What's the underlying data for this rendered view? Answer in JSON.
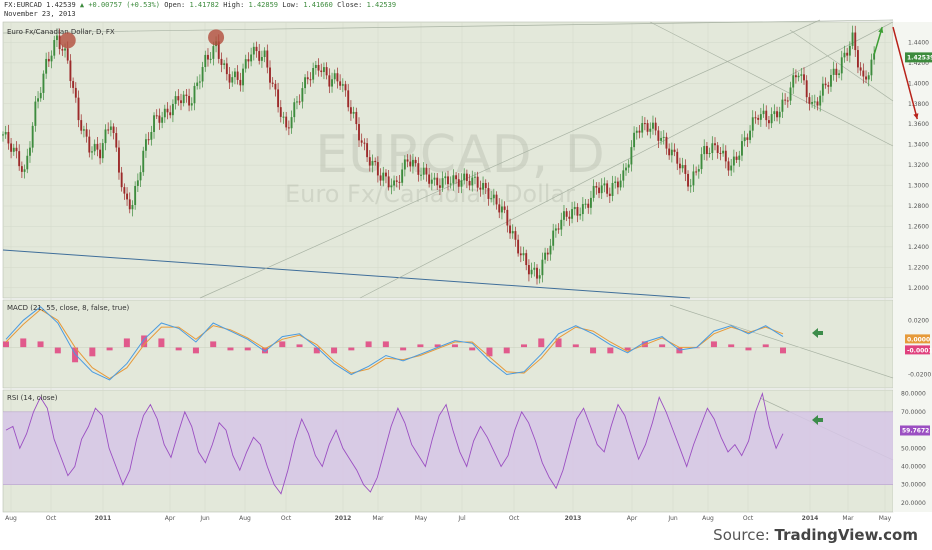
{
  "header": {
    "symbol": "FX:EURCAD",
    "price": "1.42539",
    "change": "▲ +0.00757 (+0.53%)",
    "open_label": "Open:",
    "open_value": "1.41782",
    "high_label": "High:",
    "high_value": "1.42859",
    "low_label": "Low:",
    "low_value": "1.41660",
    "close_label": "Close:",
    "close_value": "1.42539",
    "date": "November 23, 2013"
  },
  "colors": {
    "panel_bg": "#e3e8da",
    "candle_up": "#3d8b3d",
    "candle_down": "#9c2a2a",
    "macd_line": "#4a9be0",
    "signal_line": "#e69a3a",
    "histogram": "#e0417e",
    "rsi_line": "#9b4fc2",
    "rsi_band": "#d6c6e6",
    "arrow_up": "#3c9e33",
    "arrow_down": "#b8221a",
    "side_arrow": "#3c8c4a",
    "circle_marker": "#b24c3c"
  },
  "watermark": {
    "line1": "EURCAD, D",
    "line2": "Euro Fx/Canadian Dollar"
  },
  "source": {
    "prefix": "Source: ",
    "brand": "TradingView.com"
  },
  "chart_data": [
    {
      "type": "candlestick",
      "title": "Euro Fx/Canadian Dollar, D, FX",
      "ylim": [
        1.19,
        1.46
      ],
      "y_ticks": [
        "1.4400",
        "1.4200",
        "1.4000",
        "1.3800",
        "1.3600",
        "1.3400",
        "1.3200",
        "1.3000",
        "1.2800",
        "1.2600",
        "1.2400",
        "1.2200",
        "1.2000"
      ],
      "x_ticks": [
        "Aug",
        "Oct",
        "2011",
        "Apr",
        "Jun",
        "Aug",
        "Oct",
        "2012",
        "Mar",
        "May",
        "Jul",
        "Oct",
        "2013",
        "Apr",
        "Jun",
        "Aug",
        "Oct",
        "2014",
        "Mar",
        "May"
      ],
      "last_value": "1.42539",
      "close_path_approx": [
        [
          0,
          1.35
        ],
        [
          4,
          1.33
        ],
        [
          8,
          1.31
        ],
        [
          12,
          1.38
        ],
        [
          16,
          1.42
        ],
        [
          20,
          1.44
        ],
        [
          24,
          1.42
        ],
        [
          28,
          1.37
        ],
        [
          32,
          1.34
        ],
        [
          36,
          1.33
        ],
        [
          40,
          1.36
        ],
        [
          45,
          1.29
        ],
        [
          48,
          1.285
        ],
        [
          52,
          1.33
        ],
        [
          56,
          1.36
        ],
        [
          60,
          1.37
        ],
        [
          65,
          1.39
        ],
        [
          70,
          1.38
        ],
        [
          75,
          1.42
        ],
        [
          79,
          1.44
        ],
        [
          83,
          1.41
        ],
        [
          88,
          1.4
        ],
        [
          92,
          1.43
        ],
        [
          97,
          1.43
        ],
        [
          101,
          1.39
        ],
        [
          105,
          1.35
        ],
        [
          109,
          1.38
        ],
        [
          113,
          1.41
        ],
        [
          117,
          1.42
        ],
        [
          121,
          1.4
        ],
        [
          125,
          1.4
        ],
        [
          130,
          1.37
        ],
        [
          135,
          1.33
        ],
        [
          140,
          1.305
        ],
        [
          145,
          1.3
        ],
        [
          150,
          1.33
        ],
        [
          155,
          1.31
        ],
        [
          160,
          1.3
        ],
        [
          165,
          1.31
        ],
        [
          170,
          1.305
        ],
        [
          175,
          1.3
        ],
        [
          180,
          1.295
        ],
        [
          185,
          1.28
        ],
        [
          190,
          1.24
        ],
        [
          194,
          1.22
        ],
        [
          198,
          1.215
        ],
        [
          202,
          1.24
        ],
        [
          206,
          1.26
        ],
        [
          210,
          1.27
        ],
        [
          215,
          1.28
        ],
        [
          220,
          1.3
        ],
        [
          225,
          1.29
        ],
        [
          230,
          1.31
        ],
        [
          235,
          1.36
        ],
        [
          240,
          1.355
        ],
        [
          245,
          1.34
        ],
        [
          250,
          1.33
        ],
        [
          255,
          1.3
        ],
        [
          260,
          1.33
        ],
        [
          265,
          1.34
        ],
        [
          270,
          1.32
        ],
        [
          275,
          1.34
        ],
        [
          280,
          1.37
        ],
        [
          285,
          1.37
        ],
        [
          290,
          1.38
        ],
        [
          295,
          1.41
        ],
        [
          300,
          1.38
        ],
        [
          305,
          1.4
        ],
        [
          310,
          1.41
        ],
        [
          315,
          1.445
        ],
        [
          319,
          1.405
        ],
        [
          323,
          1.425
        ]
      ],
      "annotations": {
        "circles": [
          {
            "t": 24,
            "v": 1.442
          },
          {
            "t": 79,
            "v": 1.445
          }
        ],
        "arrow_up": {
          "from": [
            323,
            1.428
          ],
          "to": [
            326,
            1.455
          ]
        },
        "arrow_down": {
          "from": [
            330,
            1.455
          ],
          "to": [
            339,
            1.365
          ]
        }
      }
    },
    {
      "type": "line",
      "title": "MACD (21, 55, close, 8, false, true)",
      "series": [
        {
          "name": "MACD",
          "values": [
            0.006,
            0.02,
            0.03,
            0.018,
            -0.005,
            -0.018,
            -0.024,
            -0.012,
            0.006,
            0.018,
            0.014,
            0.004,
            0.018,
            0.012,
            0.006,
            -0.003,
            0.008,
            0.01,
            0.0,
            -0.012,
            -0.02,
            -0.014,
            -0.006,
            -0.01,
            -0.005,
            0.0,
            0.005,
            0.003,
            -0.01,
            -0.02,
            -0.018,
            -0.005,
            0.01,
            0.016,
            0.01,
            0.002,
            -0.004,
            0.004,
            0.008,
            -0.002,
            0.0,
            0.012,
            0.016,
            0.01,
            0.016,
            0.008
          ]
        },
        {
          "name": "Signal",
          "values": [
            0.004,
            0.017,
            0.028,
            0.02,
            0.0,
            -0.015,
            -0.023,
            -0.015,
            0.002,
            0.015,
            0.015,
            0.006,
            0.016,
            0.013,
            0.007,
            -0.001,
            0.006,
            0.009,
            0.002,
            -0.01,
            -0.019,
            -0.016,
            -0.008,
            -0.009,
            -0.006,
            -0.001,
            0.004,
            0.004,
            -0.007,
            -0.018,
            -0.019,
            -0.008,
            0.007,
            0.015,
            0.012,
            0.004,
            -0.003,
            0.002,
            0.007,
            0.0,
            0.0,
            0.01,
            0.015,
            0.011,
            0.015,
            0.01
          ]
        }
      ],
      "ylim": [
        -0.03,
        0.035
      ],
      "y_ticks": [
        "0.0200",
        "-0.0200"
      ],
      "value_labels": [
        "0.0000",
        "-0.0001"
      ]
    },
    {
      "type": "line",
      "title": "RSI (14, close)",
      "series": [
        {
          "name": "RSI",
          "values": [
            60,
            62,
            50,
            58,
            70,
            78,
            72,
            55,
            45,
            35,
            40,
            55,
            62,
            72,
            68,
            50,
            40,
            30,
            38,
            55,
            68,
            74,
            66,
            52,
            45,
            58,
            70,
            62,
            48,
            42,
            52,
            64,
            60,
            46,
            38,
            48,
            56,
            52,
            40,
            30,
            25,
            38,
            54,
            66,
            58,
            46,
            40,
            52,
            60,
            50,
            44,
            38,
            30,
            26,
            34,
            48,
            62,
            72,
            64,
            52,
            46,
            40,
            55,
            68,
            74,
            60,
            48,
            40,
            54,
            62,
            56,
            48,
            40,
            46,
            60,
            70,
            64,
            54,
            42,
            34,
            28,
            38,
            52,
            66,
            72,
            62,
            52,
            48,
            62,
            74,
            68,
            56,
            44,
            52,
            64,
            78,
            70,
            60,
            50,
            40,
            52,
            62,
            72,
            66,
            56,
            48,
            52,
            46,
            54,
            70,
            80,
            62,
            50,
            58
          ]
        }
      ],
      "ylim": [
        15,
        82
      ],
      "y_ticks": [
        "80.0000",
        "70.0000",
        "60.0000",
        "50.0000",
        "40.0000",
        "30.0000",
        "20.0000"
      ],
      "band": [
        30,
        70
      ],
      "last_value": "59.7672"
    }
  ]
}
